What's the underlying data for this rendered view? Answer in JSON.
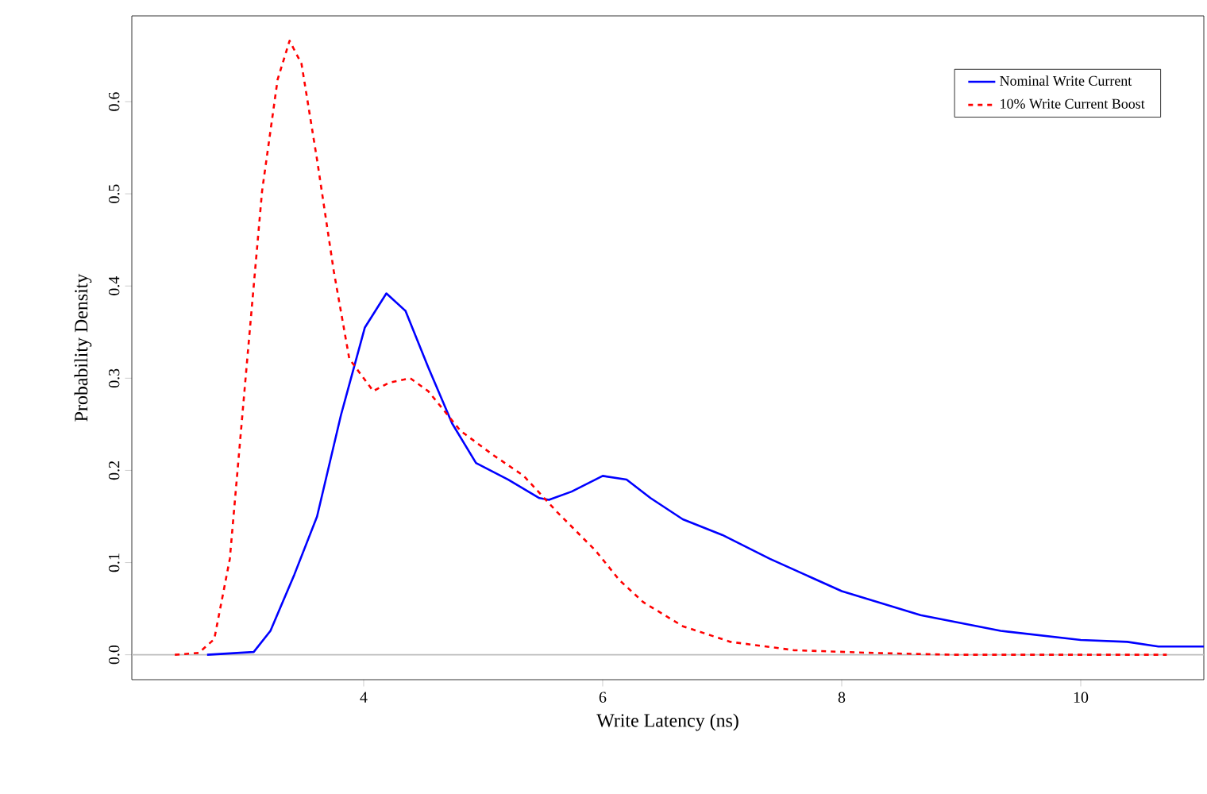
{
  "chart_data": {
    "type": "line",
    "xlabel": "Write Latency (ns)",
    "ylabel": "Probability Density",
    "xlim": [
      2.06,
      11.03
    ],
    "ylim": [
      -0.027,
      0.693
    ],
    "xticks": [
      4,
      6,
      8,
      10
    ],
    "yticks": [
      {
        "value": 0,
        "label": "0.0"
      },
      {
        "value": 0.1,
        "label": "0.1"
      },
      {
        "value": 0.2,
        "label": "0.2"
      },
      {
        "value": 0.3,
        "label": "0.3"
      },
      {
        "value": 0.4,
        "label": "0.4"
      },
      {
        "value": 0.5,
        "label": "0.5"
      },
      {
        "value": 0.6,
        "label": "0.6"
      }
    ],
    "legend": "top right",
    "ref_lines": [
      {
        "axis": "y",
        "value": 0,
        "color": "#bebebe"
      }
    ],
    "series": [
      {
        "name": "Nominal Write Current",
        "color": "#0000ff",
        "line_style": "solid",
        "x": [
          2.69,
          3.08,
          3.22,
          3.42,
          3.61,
          3.81,
          4.01,
          4.19,
          4.35,
          4.54,
          4.74,
          4.94,
          5.21,
          5.47,
          5.55,
          5.74,
          6.0,
          6.2,
          6.4,
          6.67,
          7.0,
          7.4,
          8.0,
          8.66,
          9.33,
          10.0,
          10.39,
          10.65,
          11.03
        ],
        "values": [
          0,
          0.003,
          0.026,
          0.087,
          0.15,
          0.26,
          0.355,
          0.392,
          0.373,
          0.312,
          0.251,
          0.208,
          0.19,
          0.17,
          0.168,
          0.177,
          0.194,
          0.19,
          0.17,
          0.147,
          0.13,
          0.104,
          0.069,
          0.043,
          0.026,
          0.016,
          0.014,
          0.009,
          0.009
        ]
      },
      {
        "name": "10% Write Current Boost",
        "color": "#ff0000",
        "line_style": "dashed",
        "x": [
          2.42,
          2.62,
          2.75,
          2.88,
          3.02,
          3.15,
          3.28,
          3.38,
          3.48,
          3.61,
          3.75,
          3.88,
          4.08,
          4.21,
          4.39,
          4.54,
          4.81,
          5.08,
          5.34,
          5.61,
          5.94,
          6.14,
          6.34,
          6.67,
          7.07,
          7.6,
          8.26,
          8.93,
          10.72
        ],
        "values": [
          0,
          0.002,
          0.017,
          0.104,
          0.312,
          0.503,
          0.624,
          0.666,
          0.641,
          0.537,
          0.416,
          0.321,
          0.286,
          0.295,
          0.3,
          0.286,
          0.243,
          0.217,
          0.194,
          0.156,
          0.113,
          0.081,
          0.057,
          0.031,
          0.014,
          0.005,
          0.002,
          0,
          0
        ]
      }
    ]
  }
}
